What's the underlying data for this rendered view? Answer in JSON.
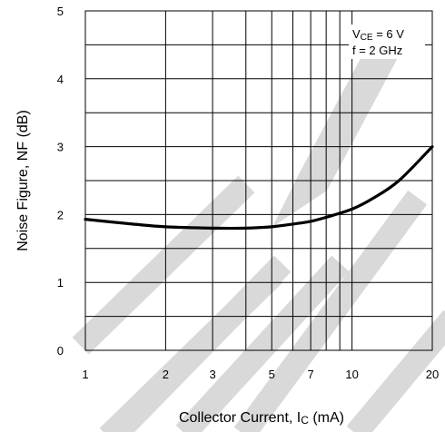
{
  "chart_data": {
    "type": "line",
    "x_scale": "log",
    "xlim": [
      1,
      20
    ],
    "ylim": [
      0,
      5
    ],
    "xlabel": "Collector Current, I",
    "xlabel_sub": "C",
    "xlabel_unit": " (mA)",
    "ylabel": "Noise Figure, NF (dB)",
    "x_tick_labels": [
      "1",
      "2",
      "3",
      "5",
      "7",
      "10",
      "20"
    ],
    "y_tick_labels": [
      "0",
      "1",
      "2",
      "3",
      "4",
      "5"
    ],
    "grid": true,
    "annotation": {
      "line1_main": "V",
      "line1_sub": "CE",
      "line1_rest": " = 6 V",
      "line2": "f = 2 GHz",
      "placement": "top-right"
    },
    "series": [
      {
        "x": [
          1,
          1.5,
          2,
          3,
          4,
          5,
          6,
          7,
          8,
          10,
          12,
          15,
          20
        ],
        "y": [
          1.93,
          1.86,
          1.82,
          1.8,
          1.8,
          1.82,
          1.86,
          1.9,
          1.96,
          2.08,
          2.24,
          2.5,
          3.0
        ]
      }
    ]
  },
  "watermark": {
    "color": "#d9d9d9",
    "description_name": "discontinued-watermark"
  }
}
